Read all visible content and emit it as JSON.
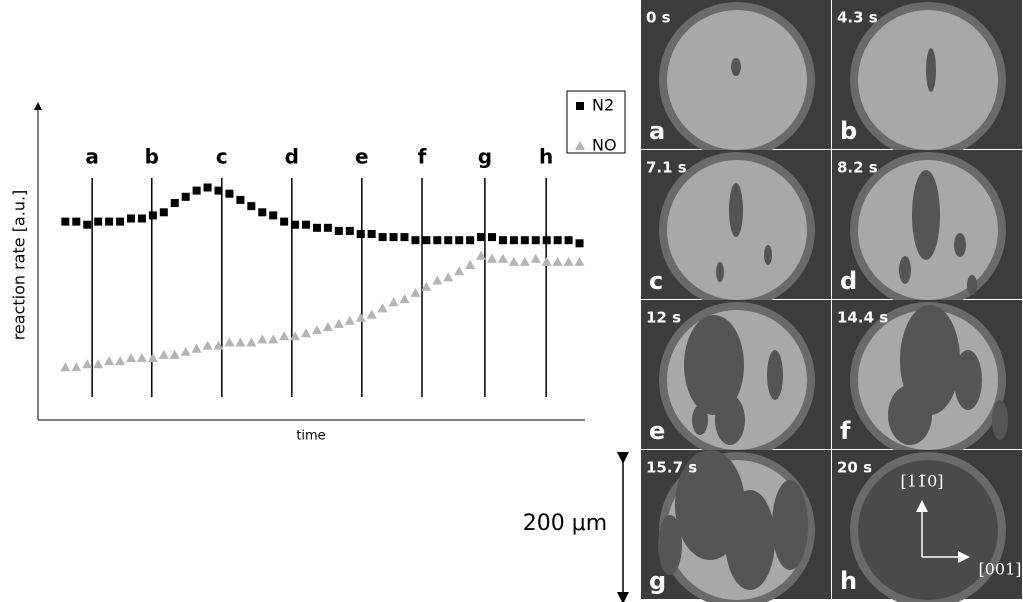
{
  "chart_data": {
    "type": "scatter",
    "y_label": "reaction rate [a.u.]",
    "x_label": "time",
    "xlim": [
      0,
      100
    ],
    "ylim": [
      0,
      1
    ],
    "x": [
      5,
      7,
      9,
      11,
      13,
      15,
      17,
      19,
      21,
      23,
      25,
      27,
      29,
      31,
      33,
      35,
      37,
      39,
      41,
      43,
      45,
      47,
      49,
      51,
      53,
      55,
      57,
      59,
      61,
      63,
      65,
      67,
      69,
      71,
      73,
      75,
      77,
      79,
      81,
      83,
      85,
      87,
      89,
      91,
      93,
      95,
      97,
      99
    ],
    "series": [
      {
        "name": "N2",
        "color": "#000000",
        "marker": "square",
        "values": [
          0.64,
          0.64,
          0.63,
          0.64,
          0.64,
          0.64,
          0.65,
          0.65,
          0.66,
          0.67,
          0.7,
          0.72,
          0.74,
          0.75,
          0.74,
          0.73,
          0.71,
          0.69,
          0.67,
          0.66,
          0.64,
          0.63,
          0.63,
          0.62,
          0.62,
          0.61,
          0.61,
          0.6,
          0.6,
          0.59,
          0.59,
          0.59,
          0.58,
          0.58,
          0.58,
          0.58,
          0.58,
          0.58,
          0.59,
          0.59,
          0.58,
          0.58,
          0.58,
          0.58,
          0.58,
          0.58,
          0.58,
          0.57
        ]
      },
      {
        "name": "NO",
        "color": "#b4b4b4",
        "marker": "triangle",
        "values": [
          0.17,
          0.17,
          0.18,
          0.18,
          0.19,
          0.19,
          0.2,
          0.2,
          0.2,
          0.21,
          0.21,
          0.22,
          0.23,
          0.24,
          0.24,
          0.25,
          0.25,
          0.25,
          0.26,
          0.26,
          0.27,
          0.27,
          0.28,
          0.29,
          0.3,
          0.31,
          0.32,
          0.33,
          0.34,
          0.36,
          0.38,
          0.39,
          0.41,
          0.43,
          0.45,
          0.46,
          0.48,
          0.5,
          0.53,
          0.52,
          0.52,
          0.51,
          0.51,
          0.52,
          0.51,
          0.51,
          0.51,
          0.51
        ]
      }
    ],
    "vlines": [
      {
        "label": "a",
        "x": 9.9
      },
      {
        "label": "b",
        "x": 20.8
      },
      {
        "label": "c",
        "x": 33.6
      },
      {
        "label": "d",
        "x": 46.4
      },
      {
        "label": "e",
        "x": 59.2
      },
      {
        "label": "f",
        "x": 70.2
      },
      {
        "label": "g",
        "x": 81.7
      },
      {
        "label": "h",
        "x": 92.9
      }
    ],
    "legend": "top-right"
  },
  "micrographs": [
    {
      "time": "0 s",
      "label": "a"
    },
    {
      "time": "4.3 s",
      "label": "b"
    },
    {
      "time": "7.1 s",
      "label": "c"
    },
    {
      "time": "8.2 s",
      "label": "d"
    },
    {
      "time": "12 s",
      "label": "e"
    },
    {
      "time": "14.4 s",
      "label": "f"
    },
    {
      "time": "15.7 s",
      "label": "g"
    },
    {
      "time": "20 s",
      "label": "h"
    }
  ],
  "scale_bar": "200 μm",
  "directions": [
    "[11̄0]",
    "[001]"
  ]
}
